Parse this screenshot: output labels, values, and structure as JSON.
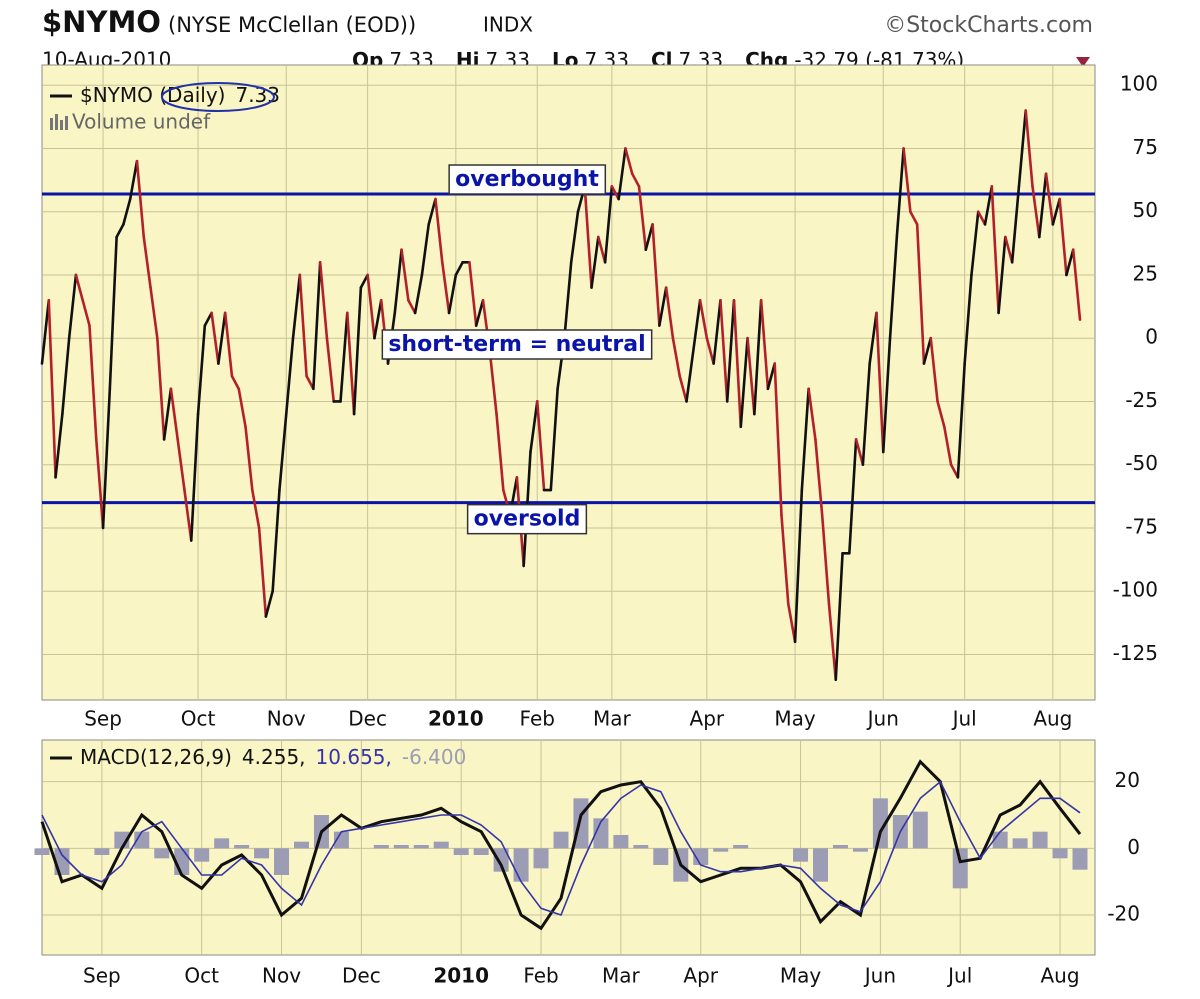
{
  "header": {
    "title": "$NYMO",
    "subtitle": "(NYSE McClellan (EOD))",
    "exchange": "INDX",
    "source": "©StockCharts.com",
    "date": "10-Aug-2010",
    "quote": [
      {
        "label": "Op",
        "value": 7.33
      },
      {
        "label": "Hi",
        "value": 7.33
      },
      {
        "label": "Lo",
        "value": 7.33
      },
      {
        "label": "Cl",
        "value": 7.33
      }
    ],
    "change_label": "Chg",
    "change": "-32.79 (-81.73%)"
  },
  "chart_data": [
    {
      "type": "updown_line",
      "legend": "$NYMO (Daily)",
      "legend_value": 7.33,
      "volume_label": "Volume undef",
      "up_color": "#111111",
      "down_color": "#b3202a",
      "ylim": [
        -143,
        108
      ],
      "yticks": [
        100,
        75,
        50,
        25,
        0,
        -25,
        -50,
        -75,
        -100,
        -125
      ],
      "grid": true,
      "hlines": [
        {
          "value": 57,
          "label": "overbought"
        },
        {
          "value": -65,
          "label": "oversold"
        }
      ],
      "annotation": "short-term = neutral",
      "categories": [
        null,
        null,
        null,
        null,
        null,
        null,
        null,
        null,
        null,
        "Sep",
        null,
        null,
        null,
        null,
        null,
        null,
        null,
        null,
        null,
        null,
        null,
        null,
        null,
        "Oct",
        null,
        null,
        null,
        null,
        null,
        null,
        null,
        null,
        null,
        null,
        null,
        null,
        "Nov",
        null,
        null,
        null,
        null,
        null,
        null,
        null,
        null,
        null,
        null,
        null,
        "Dec",
        null,
        null,
        null,
        null,
        null,
        null,
        null,
        null,
        null,
        null,
        null,
        null,
        "2010",
        null,
        null,
        null,
        null,
        null,
        null,
        null,
        null,
        null,
        null,
        null,
        "Feb",
        null,
        null,
        null,
        null,
        null,
        null,
        null,
        null,
        null,
        null,
        "Mar",
        null,
        null,
        null,
        null,
        null,
        null,
        null,
        null,
        null,
        null,
        null,
        null,
        null,
        "Apr",
        null,
        null,
        null,
        null,
        null,
        null,
        null,
        null,
        null,
        null,
        null,
        null,
        "May",
        null,
        null,
        null,
        null,
        null,
        null,
        null,
        null,
        null,
        null,
        null,
        null,
        "Jun",
        null,
        null,
        null,
        null,
        null,
        null,
        null,
        null,
        null,
        null,
        null,
        "Jul",
        null,
        null,
        null,
        null,
        null,
        null,
        null,
        null,
        null,
        null,
        null,
        null,
        "Aug",
        null,
        null,
        null,
        null
      ],
      "values": [
        -10,
        15,
        -55,
        -30,
        0,
        25,
        15,
        5,
        -40,
        -75,
        -20,
        40,
        45,
        55,
        70,
        40,
        20,
        0,
        -40,
        -20,
        -40,
        -60,
        -80,
        -30,
        5,
        10,
        -10,
        10,
        -15,
        -20,
        -35,
        -60,
        -75,
        -110,
        -100,
        -60,
        -30,
        0,
        25,
        -15,
        -20,
        30,
        0,
        -25,
        -25,
        10,
        -30,
        20,
        25,
        0,
        15,
        -10,
        10,
        35,
        15,
        10,
        25,
        45,
        55,
        30,
        10,
        25,
        30,
        30,
        5,
        15,
        -5,
        -30,
        -60,
        -70,
        -55,
        -90,
        -45,
        -25,
        -60,
        -60,
        -20,
        0,
        30,
        50,
        60,
        20,
        40,
        30,
        60,
        55,
        75,
        65,
        60,
        35,
        45,
        5,
        20,
        0,
        -15,
        -25,
        -5,
        15,
        0,
        -10,
        15,
        -25,
        15,
        -35,
        0,
        -30,
        15,
        -20,
        -10,
        -70,
        -105,
        -120,
        -60,
        -20,
        -40,
        -70,
        -105,
        -135,
        -85,
        -85,
        -40,
        -50,
        -10,
        10,
        -45,
        0,
        40,
        75,
        50,
        45,
        -10,
        0,
        -25,
        -35,
        -50,
        -55,
        -10,
        25,
        50,
        45,
        60,
        10,
        40,
        30,
        60,
        90,
        60,
        40,
        65,
        45,
        55,
        25,
        35,
        7.33
      ]
    },
    {
      "type": "macd",
      "legend": "MACD(12,26,9)",
      "ylim": [
        -32,
        32.5
      ],
      "yticks": [
        20,
        0,
        -20
      ],
      "grid": true,
      "categories": [
        null,
        null,
        null,
        "Sep",
        null,
        null,
        null,
        null,
        "Oct",
        null,
        null,
        null,
        "Nov",
        null,
        null,
        null,
        "Dec",
        null,
        null,
        null,
        null,
        "2010",
        null,
        null,
        null,
        "Feb",
        null,
        null,
        null,
        "Mar",
        null,
        null,
        null,
        "Apr",
        null,
        null,
        null,
        null,
        "May",
        null,
        null,
        null,
        "Jun",
        null,
        null,
        null,
        "Jul",
        null,
        null,
        null,
        null,
        "Aug",
        null
      ],
      "series": [
        {
          "last": "4.255,",
          "kind": "line",
          "color": "#111111",
          "values": [
            8,
            -10,
            -8,
            -12,
            0,
            10,
            5,
            -8,
            -12,
            -5,
            -2,
            -8,
            -20,
            -15,
            5,
            10,
            6,
            8,
            9,
            10,
            12,
            8,
            5,
            -5,
            -20,
            -24,
            -15,
            10,
            17,
            19,
            20,
            12,
            -5,
            -10,
            -8,
            -6,
            -6,
            -5,
            -10,
            -22,
            -16,
            -20,
            5,
            15,
            26,
            20,
            -4,
            -3,
            10,
            13,
            20,
            12,
            4.255
          ]
        },
        {
          "last": "10.655,",
          "kind": "line",
          "color": "#3535a8",
          "values": [
            10,
            -2,
            -8,
            -10,
            -5,
            5,
            8,
            0,
            -8,
            -8,
            -3,
            -5,
            -12,
            -17,
            -5,
            5,
            6,
            7,
            8,
            9,
            10,
            10,
            7,
            2,
            -10,
            -18,
            -20,
            -5,
            8,
            15,
            19,
            17,
            5,
            -5,
            -7,
            -7,
            -6,
            -5,
            -6,
            -12,
            -17,
            -19,
            -10,
            5,
            15,
            20,
            8,
            -3,
            5,
            10,
            15,
            15,
            10.655
          ]
        },
        {
          "last": "-6.400",
          "kind": "histogram",
          "color": "#9c9cb4",
          "values": [
            -2,
            -8,
            0,
            -2,
            5,
            5,
            -3,
            -8,
            -4,
            3,
            1,
            -3,
            -8,
            2,
            10,
            5,
            0,
            1,
            1,
            1,
            2,
            -2,
            -2,
            -7,
            -10,
            -6,
            5,
            15,
            9,
            4,
            1,
            -5,
            -10,
            -5,
            -1,
            1,
            0,
            0,
            -4,
            -10,
            1,
            -1,
            15,
            10,
            11,
            0,
            -12,
            0,
            5,
            3,
            5,
            -3,
            -6.4
          ]
        }
      ]
    }
  ]
}
